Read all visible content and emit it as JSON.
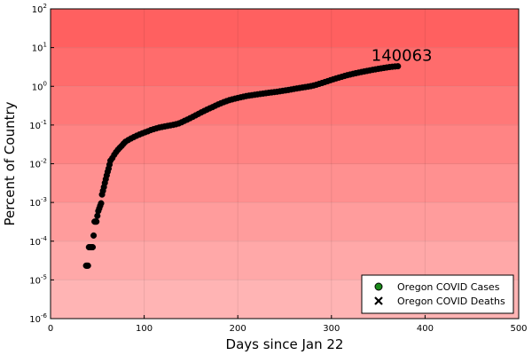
{
  "chart_data": {
    "type": "scatter",
    "title": "",
    "xlabel": "Days since Jan 22",
    "ylabel": "Percent of Country",
    "xlim": [
      0,
      500
    ],
    "ylim": [
      1e-06,
      100
    ],
    "yscale": "log",
    "grid": true,
    "legend_position": "bottom-right",
    "xticks": [
      "0",
      "100",
      "200",
      "300",
      "400",
      "500"
    ],
    "yticks": [
      {
        "base": "10",
        "exp": "-6"
      },
      {
        "base": "10",
        "exp": "-5"
      },
      {
        "base": "10",
        "exp": "-4"
      },
      {
        "base": "10",
        "exp": "-3"
      },
      {
        "base": "10",
        "exp": "-2"
      },
      {
        "base": "10",
        "exp": "-1"
      },
      {
        "base": "10",
        "exp": "0"
      },
      {
        "base": "10",
        "exp": "1"
      },
      {
        "base": "10",
        "exp": "2"
      }
    ],
    "band_colors": [
      "#ffb4b4",
      "#ffa8a8",
      "#ff9c9c",
      "#ff9090",
      "#ff8484",
      "#ff7878",
      "#ff6c6c",
      "#ff6060"
    ],
    "annotation": {
      "text": "140063",
      "x": 371,
      "y": 3.3
    },
    "series": [
      {
        "name": "Oregon COVID Cases",
        "marker": "circle",
        "legend_color": "#1a8a1a",
        "plot_color": "#000000",
        "points": [
          [
            38,
            2.33e-05
          ],
          [
            39,
            2.33e-05
          ],
          [
            40,
            2.33e-05
          ],
          [
            41,
            7e-05
          ],
          [
            42,
            7e-05
          ],
          [
            43,
            7e-05
          ],
          [
            44,
            7e-05
          ],
          [
            45,
            7e-05
          ],
          [
            46,
            0.00014
          ],
          [
            47,
            0.00032
          ],
          [
            48,
            0.00032
          ],
          [
            49,
            0.00032
          ],
          [
            50,
            0.00045
          ],
          [
            51,
            0.0006
          ],
          [
            52,
            0.0007
          ],
          [
            53,
            0.00082
          ],
          [
            54,
            0.00095
          ],
          [
            55,
            0.0016
          ],
          [
            56,
            0.002
          ],
          [
            57,
            0.0025
          ],
          [
            58,
            0.0032
          ],
          [
            59,
            0.004
          ],
          [
            60,
            0.005
          ],
          [
            61,
            0.0062
          ],
          [
            62,
            0.0075
          ],
          [
            63,
            0.0095
          ],
          [
            64,
            0.012
          ],
          [
            66,
            0.014
          ],
          [
            68,
            0.017
          ],
          [
            70,
            0.02
          ],
          [
            72,
            0.023
          ],
          [
            74,
            0.026
          ],
          [
            76,
            0.029
          ],
          [
            78,
            0.033
          ],
          [
            80,
            0.037
          ],
          [
            83,
            0.041
          ],
          [
            86,
            0.045
          ],
          [
            89,
            0.049
          ],
          [
            92,
            0.053
          ],
          [
            95,
            0.057
          ],
          [
            98,
            0.061
          ],
          [
            101,
            0.065
          ],
          [
            104,
            0.069
          ],
          [
            107,
            0.074
          ],
          [
            110,
            0.078
          ],
          [
            113,
            0.082
          ],
          [
            116,
            0.086
          ],
          [
            119,
            0.089
          ],
          [
            122,
            0.092
          ],
          [
            125,
            0.095
          ],
          [
            128,
            0.098
          ],
          [
            131,
            0.101
          ],
          [
            134,
            0.105
          ],
          [
            137,
            0.11
          ],
          [
            140,
            0.118
          ],
          [
            143,
            0.128
          ],
          [
            146,
            0.138
          ],
          [
            149,
            0.15
          ],
          [
            152,
            0.163
          ],
          [
            155,
            0.178
          ],
          [
            158,
            0.194
          ],
          [
            161,
            0.212
          ],
          [
            164,
            0.23
          ],
          [
            167,
            0.25
          ],
          [
            170,
            0.27
          ],
          [
            173,
            0.29
          ],
          [
            176,
            0.315
          ],
          [
            179,
            0.34
          ],
          [
            182,
            0.365
          ],
          [
            185,
            0.39
          ],
          [
            188,
            0.415
          ],
          [
            191,
            0.44
          ],
          [
            194,
            0.46
          ],
          [
            197,
            0.48
          ],
          [
            200,
            0.5
          ],
          [
            203,
            0.52
          ],
          [
            206,
            0.54
          ],
          [
            209,
            0.56
          ],
          [
            212,
            0.575
          ],
          [
            215,
            0.59
          ],
          [
            218,
            0.605
          ],
          [
            221,
            0.62
          ],
          [
            224,
            0.635
          ],
          [
            227,
            0.65
          ],
          [
            230,
            0.665
          ],
          [
            233,
            0.68
          ],
          [
            236,
            0.695
          ],
          [
            239,
            0.71
          ],
          [
            242,
            0.725
          ],
          [
            245,
            0.745
          ],
          [
            248,
            0.765
          ],
          [
            251,
            0.785
          ],
          [
            254,
            0.805
          ],
          [
            257,
            0.83
          ],
          [
            260,
            0.855
          ],
          [
            263,
            0.88
          ],
          [
            266,
            0.905
          ],
          [
            269,
            0.93
          ],
          [
            272,
            0.955
          ],
          [
            275,
            0.98
          ],
          [
            278,
            1.01
          ],
          [
            281,
            1.05
          ],
          [
            284,
            1.1
          ],
          [
            287,
            1.16
          ],
          [
            290,
            1.22
          ],
          [
            293,
            1.29
          ],
          [
            296,
            1.36
          ],
          [
            299,
            1.44
          ],
          [
            302,
            1.52
          ],
          [
            305,
            1.6
          ],
          [
            308,
            1.68
          ],
          [
            311,
            1.76
          ],
          [
            314,
            1.85
          ],
          [
            317,
            1.94
          ],
          [
            320,
            2.02
          ],
          [
            323,
            2.1
          ],
          [
            326,
            2.18
          ],
          [
            329,
            2.26
          ],
          [
            332,
            2.34
          ],
          [
            335,
            2.42
          ],
          [
            338,
            2.5
          ],
          [
            341,
            2.58
          ],
          [
            344,
            2.66
          ],
          [
            347,
            2.74
          ],
          [
            350,
            2.82
          ],
          [
            353,
            2.9
          ],
          [
            356,
            2.98
          ],
          [
            359,
            3.06
          ],
          [
            362,
            3.14
          ],
          [
            365,
            3.2
          ],
          [
            368,
            3.26
          ],
          [
            371,
            3.3
          ]
        ]
      },
      {
        "name": "Oregon COVID Deaths",
        "marker": "x",
        "legend_color": "#000000",
        "plot_color": "#000000",
        "points": []
      }
    ]
  }
}
